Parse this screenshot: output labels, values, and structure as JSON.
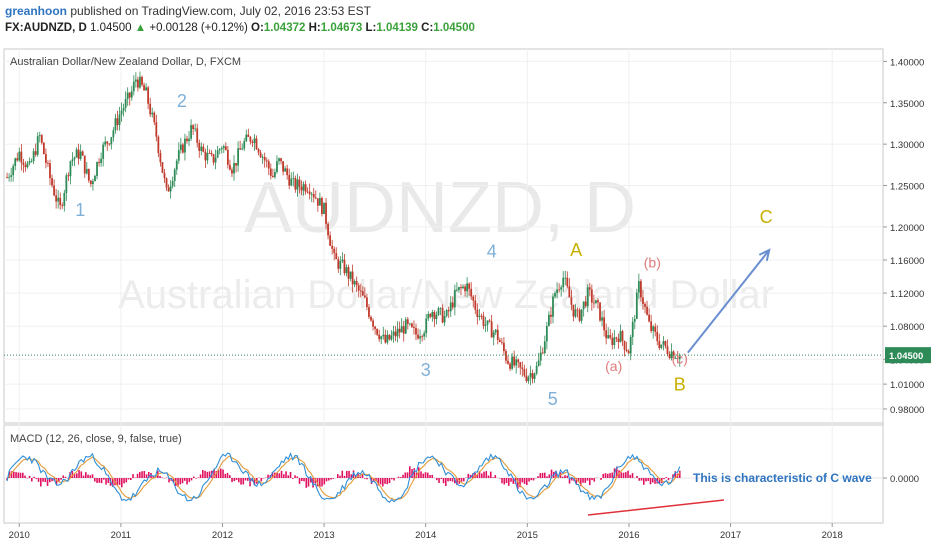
{
  "header": {
    "author": "greanhoon",
    "published": "published on TradingView.com, July 02, 2016 23:53 EST",
    "symbol": "FX:AUDNZD, D",
    "last": "1.04500",
    "change_icon": "triangle-up-icon",
    "change": "+0.00128 (+0.12%)",
    "o_label": "O:",
    "o_value": "1.04372",
    "h_label": "H:",
    "h_value": "1.04673",
    "l_label": "L:",
    "l_value": "1.04139",
    "c_label": "C:",
    "c_value": "1.04500"
  },
  "price_pane": {
    "legend": "Australian Dollar/New Zealand Dollar, D, FXCM",
    "watermark_symbol": "AUDNZD, D",
    "watermark_name": "Australian Dollar/New Zealand Dollar",
    "last_price_label": "1.04500"
  },
  "macd_pane": {
    "legend": "MACD (12, 26, close, 9, false, true)",
    "zero_label": "0.0000",
    "annotation": "This is characteristic of C wave"
  },
  "colors": {
    "up_candle": "#2e8b57",
    "down_candle": "#c0392b",
    "macd_line": "#2f8fd8",
    "signal_line": "#e39b3b",
    "histogram": "#e0115f",
    "wave_label": "#7fb0d8",
    "correction_label": "#e07b7b",
    "abc_label": "#c8b000",
    "arrow": "#6a8fd0",
    "divergence_line": "#e0303a",
    "last_price_box": "#2e8b57",
    "annotation_text": "#2f74c0"
  },
  "chart_data": [
    {
      "type": "line",
      "title": "Australian Dollar/New Zealand Dollar, D, FXCM",
      "x_ticks": [
        "2010",
        "2011",
        "2012",
        "2013",
        "2014",
        "2015",
        "2016",
        "2017",
        "2018"
      ],
      "y_ticks": [
        "1.40000",
        "1.35000",
        "1.30000",
        "1.25000",
        "1.20000",
        "1.16000",
        "1.12000",
        "1.08000",
        "1.04000",
        "1.01000",
        "0.98000"
      ],
      "ylim": [
        0.963,
        1.415
      ],
      "xlim": [
        2009.85,
        2018.5
      ],
      "last_price": 1.045,
      "series": [
        {
          "x": [
            2009.88,
            2010.0,
            2010.1,
            2010.2,
            2010.3,
            2010.4,
            2010.5,
            2010.6,
            2010.7,
            2010.8,
            2010.9,
            2011.0,
            2011.1,
            2011.15,
            2011.25,
            2011.35,
            2011.45,
            2011.55,
            2011.62,
            2011.7,
            2011.8,
            2011.9,
            2012.0,
            2012.1,
            2012.2,
            2012.3,
            2012.5,
            2012.55,
            2012.7,
            2012.85,
            2013.0,
            2013.1,
            2013.2,
            2013.3,
            2013.4,
            2013.5,
            2013.6,
            2013.7,
            2013.8,
            2013.9,
            2014.0,
            2014.05,
            2014.2,
            2014.3,
            2014.4,
            2014.5,
            2014.6,
            2014.7,
            2014.8,
            2014.9,
            2015.0,
            2015.1,
            2015.2,
            2015.27,
            2015.35,
            2015.45,
            2015.5,
            2015.6,
            2015.7,
            2015.8,
            2015.9,
            2016.0,
            2016.1,
            2016.2,
            2016.3,
            2016.4,
            2016.5
          ],
          "values": [
            1.26,
            1.29,
            1.27,
            1.31,
            1.26,
            1.22,
            1.28,
            1.29,
            1.25,
            1.29,
            1.31,
            1.34,
            1.36,
            1.38,
            1.36,
            1.31,
            1.24,
            1.28,
            1.3,
            1.32,
            1.29,
            1.28,
            1.3,
            1.27,
            1.3,
            1.31,
            1.26,
            1.28,
            1.25,
            1.25,
            1.22,
            1.16,
            1.15,
            1.13,
            1.11,
            1.08,
            1.06,
            1.07,
            1.08,
            1.07,
            1.08,
            1.1,
            1.09,
            1.12,
            1.13,
            1.1,
            1.08,
            1.07,
            1.04,
            1.03,
            1.02,
            1.03,
            1.08,
            1.12,
            1.14,
            1.1,
            1.09,
            1.12,
            1.1,
            1.06,
            1.07,
            1.05,
            1.13,
            1.08,
            1.06,
            1.05,
            1.045
          ]
        }
      ],
      "annotations": [
        {
          "text": "1",
          "x": 2010.6,
          "y": 1.213
        },
        {
          "text": "2",
          "x": 2011.6,
          "y": 1.345
        },
        {
          "text": "3",
          "x": 2014.0,
          "y": 1.02
        },
        {
          "text": "4",
          "x": 2014.65,
          "y": 1.163
        },
        {
          "text": "5",
          "x": 2015.25,
          "y": 0.985
        },
        {
          "text": "A",
          "x": 2015.48,
          "y": 1.165
        },
        {
          "text": "(a)",
          "x": 2015.85,
          "y": 1.026
        },
        {
          "text": "(b)",
          "x": 2016.23,
          "y": 1.151
        },
        {
          "text": "(c)",
          "x": 2016.5,
          "y": 1.035
        },
        {
          "text": "B",
          "x": 2016.5,
          "y": 1.002
        },
        {
          "text": "C",
          "x": 2017.35,
          "y": 1.205
        }
      ],
      "arrow": {
        "from": [
          2016.58,
          1.048
        ],
        "to": [
          2017.38,
          1.172
        ]
      }
    },
    {
      "type": "line",
      "title": "MACD (12, 26, close, 9, false, true)",
      "y_ticks": [
        "0.0000"
      ],
      "series": [
        {
          "name": "MACD",
          "values": []
        },
        {
          "name": "Signal",
          "values": []
        },
        {
          "name": "Histogram",
          "values": []
        }
      ]
    }
  ]
}
